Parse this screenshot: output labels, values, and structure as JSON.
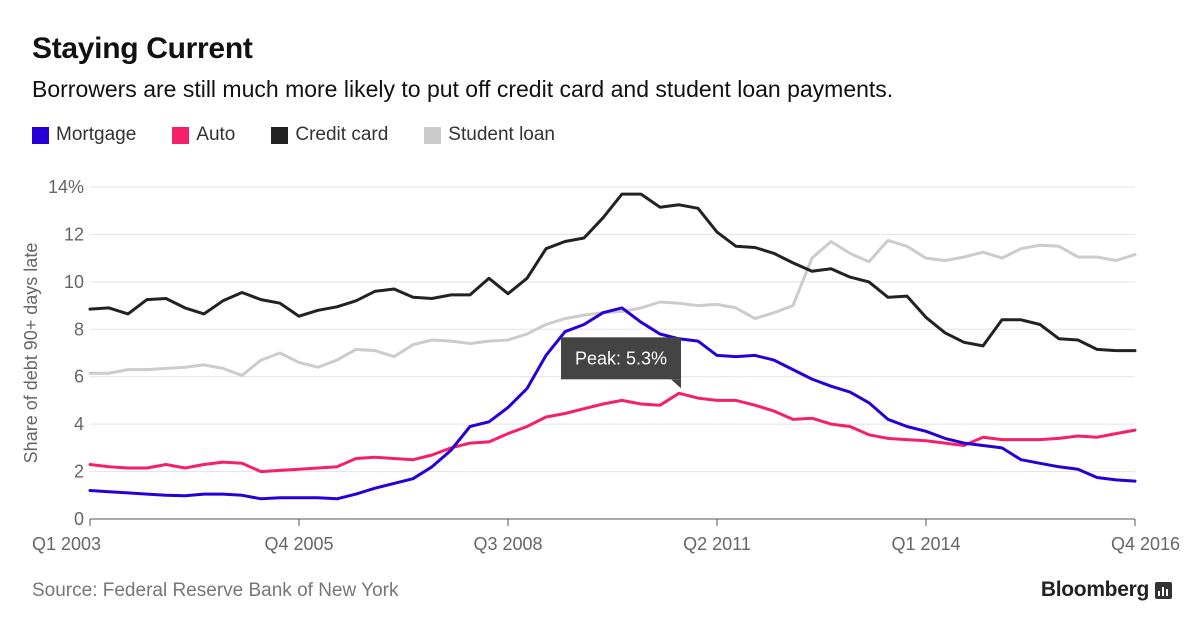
{
  "header": {
    "title": "Staying Current",
    "subtitle": "Borrowers are still much more likely to put off credit card and student loan payments."
  },
  "footer": {
    "source": "Source: Federal Reserve Bank of New York",
    "brand": "Bloomberg"
  },
  "colors": {
    "mortgage": "#2800d7",
    "auto": "#f5206a",
    "credit_card": "#222222",
    "student_loan": "#cccccc",
    "tooltip_bg": "#444444"
  },
  "chart_data": {
    "type": "line",
    "title": "Staying Current",
    "subtitle": "Borrowers are still much more likely to put off credit card and student loan payments.",
    "ylabel": "Share of debt 90+ days late",
    "ylim": [
      0,
      14
    ],
    "yticks": [
      0,
      2,
      4,
      6,
      8,
      10,
      12,
      14
    ],
    "ytick_labels": [
      "0",
      "2",
      "4",
      "6",
      "8",
      "10",
      "12",
      "14%"
    ],
    "x_start": "Q1 2003",
    "x_end": "Q4 2016",
    "xtick_labels": [
      "Q1 2003",
      "Q4 2005",
      "Q3 2008",
      "Q2 2011",
      "Q1 2014",
      "Q4 2016"
    ],
    "xtick_index": [
      0,
      11,
      22,
      33,
      44,
      55
    ],
    "grid": true,
    "legend_position": "top-left",
    "annotation": {
      "text": "Peak: 5.3%",
      "series": "Auto",
      "index": 31,
      "value": 5.3
    },
    "series": [
      {
        "name": "Mortgage",
        "color": "#2800d7",
        "values": [
          1.2,
          1.15,
          1.1,
          1.05,
          1.0,
          0.98,
          1.05,
          1.05,
          1.0,
          0.85,
          0.9,
          0.9,
          0.9,
          0.85,
          1.05,
          1.3,
          1.5,
          1.7,
          2.2,
          2.9,
          3.9,
          4.1,
          4.7,
          5.5,
          6.9,
          7.9,
          8.2,
          8.7,
          8.9,
          8.3,
          7.8,
          7.6,
          7.5,
          6.9,
          6.85,
          6.9,
          6.7,
          6.3,
          5.9,
          5.6,
          5.35,
          4.9,
          4.2,
          3.9,
          3.7,
          3.4,
          3.2,
          3.1,
          3.0,
          2.5,
          2.35,
          2.2,
          2.1,
          1.75,
          1.65,
          1.6
        ]
      },
      {
        "name": "Auto",
        "color": "#f5206a",
        "values": [
          2.3,
          2.2,
          2.15,
          2.15,
          2.3,
          2.15,
          2.3,
          2.4,
          2.35,
          2.0,
          2.05,
          2.1,
          2.15,
          2.2,
          2.55,
          2.6,
          2.55,
          2.5,
          2.7,
          3.0,
          3.2,
          3.25,
          3.6,
          3.9,
          4.3,
          4.45,
          4.65,
          4.85,
          5.0,
          4.85,
          4.8,
          5.3,
          5.1,
          5.0,
          5.0,
          4.8,
          4.55,
          4.2,
          4.25,
          4.0,
          3.9,
          3.55,
          3.4,
          3.35,
          3.3,
          3.2,
          3.1,
          3.45,
          3.35,
          3.35,
          3.35,
          3.4,
          3.5,
          3.45,
          3.6,
          3.75
        ]
      },
      {
        "name": "Credit card",
        "color": "#222222",
        "values": [
          8.85,
          8.9,
          8.65,
          9.25,
          9.3,
          8.9,
          8.65,
          9.2,
          9.55,
          9.25,
          9.1,
          8.55,
          8.8,
          8.95,
          9.2,
          9.6,
          9.7,
          9.35,
          9.3,
          9.45,
          9.45,
          10.15,
          9.5,
          10.15,
          11.4,
          11.7,
          11.85,
          12.7,
          13.7,
          13.7,
          13.15,
          13.25,
          13.1,
          12.1,
          11.5,
          11.45,
          11.2,
          10.8,
          10.45,
          10.55,
          10.2,
          10.0,
          9.35,
          9.4,
          8.5,
          7.85,
          7.45,
          7.3,
          8.4,
          8.4,
          8.2,
          7.6,
          7.55,
          7.15,
          7.1,
          7.1
        ]
      },
      {
        "name": "Student loan",
        "color": "#cccccc",
        "values": [
          6.15,
          6.15,
          6.3,
          6.3,
          6.35,
          6.4,
          6.5,
          6.35,
          6.05,
          6.7,
          7.0,
          6.6,
          6.4,
          6.7,
          7.15,
          7.1,
          6.85,
          7.35,
          7.55,
          7.5,
          7.4,
          7.5,
          7.55,
          7.8,
          8.2,
          8.45,
          8.6,
          8.7,
          8.75,
          8.9,
          9.15,
          9.1,
          9.0,
          9.05,
          8.9,
          8.45,
          8.7,
          9.0,
          11.0,
          11.7,
          11.2,
          10.85,
          11.75,
          11.5,
          11.0,
          10.9,
          11.05,
          11.25,
          11.0,
          11.4,
          11.55,
          11.5,
          11.05,
          11.05,
          10.9,
          11.15
        ]
      }
    ]
  }
}
